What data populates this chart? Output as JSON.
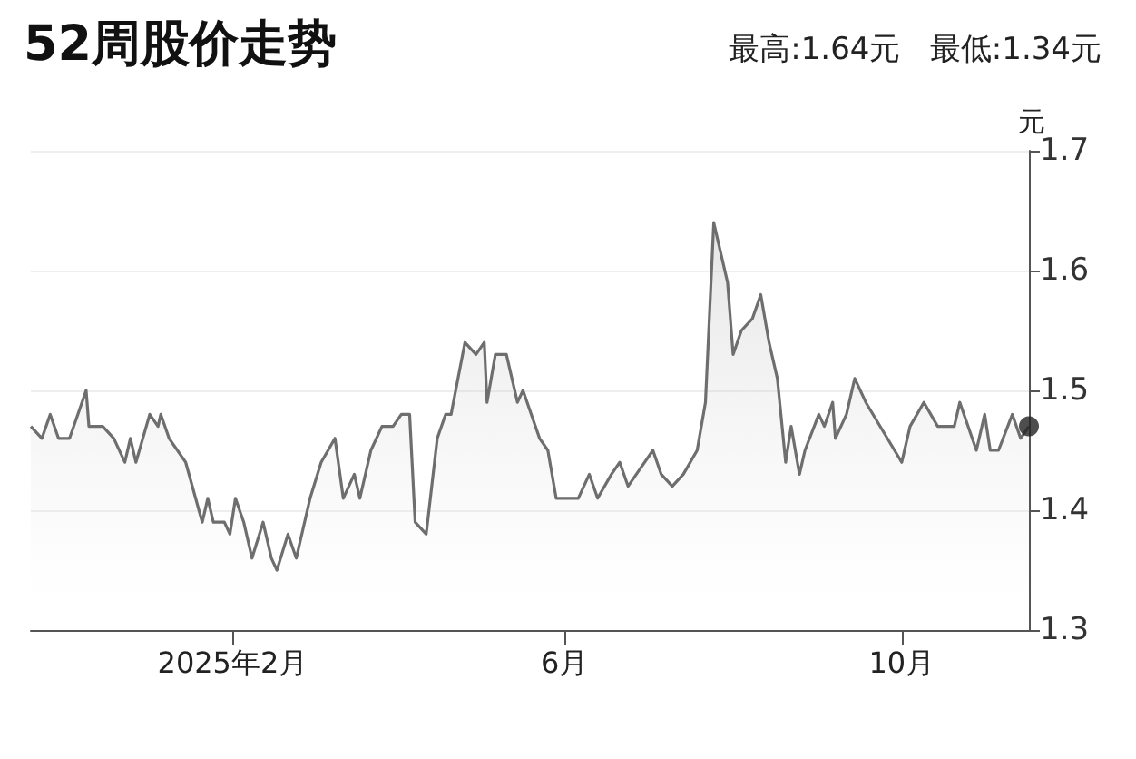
{
  "chart_data": {
    "type": "area",
    "title": "52周股价走势",
    "subtitle": "最高:1.64元   最低:1.34元",
    "ylabel": "元",
    "xlim": [
      "2024-11-20",
      "2025-11-16"
    ],
    "xticks": [
      {
        "value": "2025-02-01",
        "label": "2025年2月"
      },
      {
        "value": "2025-06-01",
        "label": "6月"
      },
      {
        "value": "2025-10-01",
        "label": "10月"
      }
    ],
    "ylim": [
      1.3,
      1.7
    ],
    "yticks": [
      1.3,
      1.4,
      1.5,
      1.6,
      1.7
    ],
    "grid": "y",
    "marker": "none",
    "line_style": "solid",
    "series": [
      {
        "color": "#6e6e6e",
        "x": [
          "2024-11-20",
          "2024-11-24",
          "2024-11-27",
          "2024-11-30",
          "2024-12-04",
          "2024-12-07",
          "2024-12-10",
          "2024-12-11",
          "2024-12-16",
          "2024-12-20",
          "2024-12-24",
          "2024-12-26",
          "2024-12-28",
          "2025-01-02",
          "2025-01-05",
          "2025-01-06",
          "2025-01-09",
          "2025-01-15",
          "2025-01-21",
          "2025-01-23",
          "2025-01-25",
          "2025-01-29",
          "2025-01-31",
          "2025-02-02",
          "2025-02-05",
          "2025-02-08",
          "2025-02-12",
          "2025-02-15",
          "2025-02-17",
          "2025-02-21",
          "2025-02-24",
          "2025-03-01",
          "2025-03-05",
          "2025-03-10",
          "2025-03-13",
          "2025-03-17",
          "2025-03-19",
          "2025-03-23",
          "2025-03-27",
          "2025-03-31",
          "2025-04-03",
          "2025-04-06",
          "2025-04-08",
          "2025-04-12",
          "2025-04-16",
          "2025-04-19",
          "2025-04-21",
          "2025-04-26",
          "2025-04-30",
          "2025-05-03",
          "2025-05-04",
          "2025-05-07",
          "2025-05-11",
          "2025-05-15",
          "2025-05-17",
          "2025-05-23",
          "2025-05-26",
          "2025-05-29",
          "2025-06-02",
          "2025-06-06",
          "2025-06-10",
          "2025-06-13",
          "2025-06-18",
          "2025-06-21",
          "2025-06-24",
          "2025-06-27",
          "2025-07-03",
          "2025-07-06",
          "2025-07-10",
          "2025-07-14",
          "2025-07-19",
          "2025-07-22",
          "2025-07-25",
          "2025-07-30",
          "2025-08-01",
          "2025-08-04",
          "2025-08-08",
          "2025-08-11",
          "2025-08-14",
          "2025-08-17",
          "2025-08-20",
          "2025-08-22",
          "2025-08-25",
          "2025-08-27",
          "2025-09-01",
          "2025-09-03",
          "2025-09-06",
          "2025-09-07",
          "2025-09-11",
          "2025-09-14",
          "2025-09-18",
          "2025-10-01",
          "2025-10-04",
          "2025-10-09",
          "2025-10-14",
          "2025-10-17",
          "2025-10-20",
          "2025-10-22",
          "2025-10-28",
          "2025-10-31",
          "2025-11-02",
          "2025-11-05",
          "2025-11-10",
          "2025-11-13",
          "2025-11-16"
        ],
        "values": [
          1.47,
          1.46,
          1.48,
          1.46,
          1.46,
          1.48,
          1.5,
          1.47,
          1.47,
          1.46,
          1.44,
          1.46,
          1.44,
          1.48,
          1.47,
          1.48,
          1.46,
          1.44,
          1.39,
          1.41,
          1.39,
          1.39,
          1.38,
          1.41,
          1.39,
          1.36,
          1.39,
          1.36,
          1.35,
          1.38,
          1.36,
          1.41,
          1.44,
          1.46,
          1.41,
          1.43,
          1.41,
          1.45,
          1.47,
          1.47,
          1.48,
          1.48,
          1.39,
          1.38,
          1.46,
          1.48,
          1.48,
          1.54,
          1.53,
          1.54,
          1.49,
          1.53,
          1.53,
          1.49,
          1.5,
          1.46,
          1.45,
          1.41,
          1.41,
          1.41,
          1.43,
          1.41,
          1.43,
          1.44,
          1.42,
          1.43,
          1.45,
          1.43,
          1.42,
          1.43,
          1.45,
          1.49,
          1.64,
          1.59,
          1.53,
          1.55,
          1.56,
          1.58,
          1.54,
          1.51,
          1.44,
          1.47,
          1.43,
          1.45,
          1.48,
          1.47,
          1.49,
          1.46,
          1.48,
          1.51,
          1.49,
          1.44,
          1.47,
          1.49,
          1.47,
          1.47,
          1.47,
          1.49,
          1.45,
          1.48,
          1.45,
          1.45,
          1.48,
          1.46,
          1.47
        ]
      },
      {
        "type": "scatter",
        "marker": "circle",
        "color": "#222222",
        "x": [
          "2025-11-16"
        ],
        "values": [
          1.47
        ]
      }
    ]
  }
}
